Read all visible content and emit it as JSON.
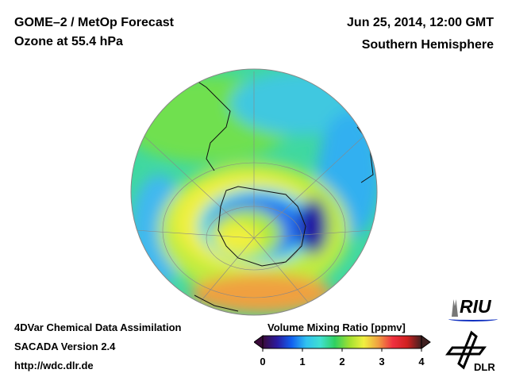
{
  "header": {
    "title_line1": "GOME–2 / MetOp Forecast",
    "title_line2": "Ozone at 55.4 hPa",
    "date": "Jun 25, 2014, 12:00 GMT",
    "region": "Southern Hemisphere"
  },
  "footer": {
    "line1": "4DVar Chemical Data Assimilation",
    "line2": "SACADA Version 2.4",
    "url": "http://wdc.dlr.de"
  },
  "colorbar": {
    "title": "Volume Mixing Ratio [ppmv]",
    "ticks": [
      "0",
      "1",
      "2",
      "3",
      "4"
    ],
    "range": [
      0,
      4
    ],
    "colors": [
      "#3a0a3a",
      "#2a1aa0",
      "#1060f0",
      "#30c0f0",
      "#40e0d0",
      "#30d060",
      "#a0e030",
      "#f0f040",
      "#f0a040",
      "#f03040",
      "#d02020",
      "#402020"
    ]
  },
  "logos": {
    "riu": "RIU",
    "dlr": "DLR"
  }
}
